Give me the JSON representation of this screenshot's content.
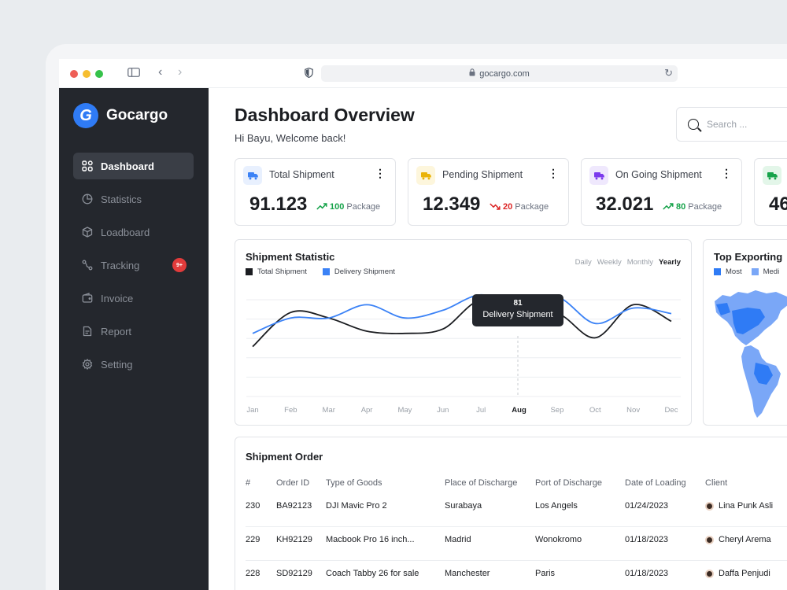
{
  "browser": {
    "url": "gocargo.com"
  },
  "sidebar": {
    "brand": "Gocargo",
    "brand_mark": "G",
    "items": [
      {
        "label": "Dashboard",
        "icon": "grid-icon"
      },
      {
        "label": "Statistics",
        "icon": "pie-chart-icon"
      },
      {
        "label": "Loadboard",
        "icon": "box-icon"
      },
      {
        "label": "Tracking",
        "icon": "route-icon",
        "badge": "9+"
      },
      {
        "label": "Invoice",
        "icon": "wallet-icon"
      },
      {
        "label": "Report",
        "icon": "document-icon"
      },
      {
        "label": "Setting",
        "icon": "gear-icon"
      }
    ]
  },
  "header": {
    "title": "Dashboard Overview",
    "subtitle": "Hi Bayu, Welcome back!",
    "search_placeholder": "Search ..."
  },
  "stats": [
    {
      "label": "Total Shipment",
      "value": "91.123",
      "delta": "100",
      "unit": "Package",
      "trend": "up",
      "icon_color": "#3b82f6",
      "icon_bg": "#e8f0fe"
    },
    {
      "label": "Pending Shipment",
      "value": "12.349",
      "delta": "20",
      "unit": "Package",
      "trend": "down",
      "icon_color": "#eab308",
      "icon_bg": "#fdf6dc"
    },
    {
      "label": "On Going Shipment",
      "value": "32.021",
      "delta": "80",
      "unit": "Package",
      "trend": "up",
      "icon_color": "#7c3aed",
      "icon_bg": "#efe8fd"
    },
    {
      "label": "",
      "value": "46",
      "delta": "",
      "unit": "",
      "trend": "up",
      "icon_color": "#16a34a",
      "icon_bg": "#e3f6e9"
    }
  ],
  "shipment_statistic": {
    "title": "Shipment Statistic",
    "legend": [
      "Total Shipment",
      "Delivery Shipment"
    ],
    "periods": [
      "Daily",
      "Weekly",
      "Monthly",
      "Yearly"
    ],
    "active_period": "Yearly",
    "tooltip": {
      "value": "81",
      "name": "Delivery Shipment"
    },
    "highlight_month": "Aug"
  },
  "chart_data": {
    "type": "line",
    "categories": [
      "Jan",
      "Feb",
      "Mar",
      "Apr",
      "May",
      "Jun",
      "Jul",
      "Aug",
      "Sep",
      "Oct",
      "Nov",
      "Dec"
    ],
    "series": [
      {
        "name": "Total Shipment",
        "color": "#1b1d21",
        "values": [
          46,
          77,
          72,
          60,
          58,
          62,
          88,
          68,
          76,
          54,
          84,
          69
        ]
      },
      {
        "name": "Delivery Shipment",
        "color": "#3b82f6",
        "values": [
          58,
          72,
          72,
          84,
          72,
          79,
          93,
          81,
          91,
          67,
          81,
          76
        ]
      }
    ],
    "ylim": [
      0,
      100
    ],
    "grid": true,
    "legend": "top-left"
  },
  "top_exporting": {
    "title": "Top Exporting",
    "legend": [
      {
        "label": "Most",
        "color": "#2f7bf5"
      },
      {
        "label": "Medi",
        "color": "#7aa7f7"
      }
    ]
  },
  "orders": {
    "title": "Shipment Order",
    "columns": [
      "#",
      "Order ID",
      "Type of Goods",
      "Place of Discharge",
      "Port of Discharge",
      "Date of Loading",
      "Client"
    ],
    "rows": [
      [
        "230",
        "BA92123",
        "DJI Mavic Pro 2",
        "Surabaya",
        "Los Angels",
        "01/24/2023",
        "Lina Punk Asli"
      ],
      [
        "229",
        "KH92129",
        "Macbook Pro 16 inch...",
        "Madrid",
        "Wonokromo",
        "01/18/2023",
        "Cheryl Arema"
      ],
      [
        "228",
        "SD92129",
        "Coach Tabby 26 for sale",
        "Manchester",
        "Paris",
        "01/18/2023",
        "Daffa Penjudi"
      ]
    ]
  }
}
